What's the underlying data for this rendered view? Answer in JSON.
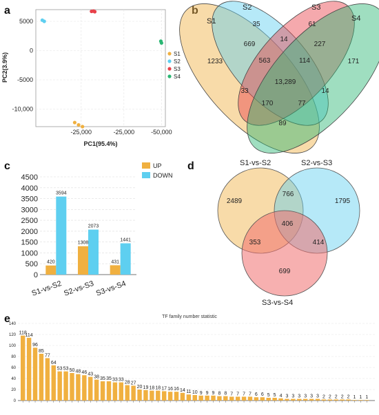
{
  "panels": {
    "a": "a",
    "b": "b",
    "c": "c",
    "d": "d",
    "e": "e"
  },
  "colors": {
    "orange": "#f0b040",
    "blue": "#5ecff0",
    "red": "#e8414a",
    "green": "#2bb673",
    "venn_red": "#f07070",
    "venn_green": "#4cc98a"
  },
  "chart_data": [
    {
      "id": "pca",
      "type": "scatter",
      "xlabel": "PC1(95.4%)",
      "ylabel": "PC2(3.9%)",
      "x_tick_labels": [
        "-25,000",
        "-25,000",
        "-50,000"
      ],
      "y_tick_labels": [
        "5000",
        "0",
        "-5000",
        "-10,000"
      ],
      "ylim": [
        -13000,
        7000
      ],
      "legend_position": "right",
      "series": [
        {
          "name": "S1",
          "color": "#f0b040",
          "points": [
            [
              0.3,
              -12300
            ],
            [
              0.33,
              -12700
            ],
            [
              0.36,
              -13000
            ]
          ]
        },
        {
          "name": "S2",
          "color": "#5ecff0",
          "points": [
            [
              0.05,
              5200
            ],
            [
              0.065,
              5000
            ]
          ]
        },
        {
          "name": "S3",
          "color": "#e8414a",
          "points": [
            [
              0.43,
              6700
            ],
            [
              0.445,
              6750
            ],
            [
              0.455,
              6650
            ]
          ]
        },
        {
          "name": "S4",
          "color": "#2bb673",
          "points": [
            [
              0.965,
              1600
            ],
            [
              0.97,
              1300
            ]
          ]
        }
      ]
    },
    {
      "id": "venn4",
      "type": "venn",
      "sets": [
        "S1",
        "S2",
        "S3",
        "S4"
      ],
      "regions": {
        "S1_only": "1233",
        "S2_only": "35",
        "S3_only": "61",
        "S4_only": "171",
        "S1_S2": "669",
        "S2_S3": "14",
        "S3_S4": "227",
        "S1_S3": "33",
        "S2_S4": "14",
        "S1_S4": "89",
        "S1_S2_S3": "563",
        "S2_S3_S4": "114",
        "S1_S3_S4": "77",
        "S1_S2_S4": "170",
        "all": "13,289"
      }
    },
    {
      "id": "deg_bars",
      "type": "bar",
      "categories": [
        "S1-vs-S2",
        "S2-vs-S3",
        "S3-vs-S4"
      ],
      "series": [
        {
          "name": "UP",
          "color": "#f0b040",
          "values": [
            420,
            1308,
            431
          ]
        },
        {
          "name": "DOWN",
          "color": "#5ecff0",
          "values": [
            3594,
            2073,
            1441
          ]
        }
      ],
      "ylim": [
        0,
        4500
      ],
      "y_ticks": [
        0,
        500,
        1000,
        1500,
        2000,
        2500,
        3000,
        3500,
        4000,
        4500
      ],
      "legend_position": "top-right",
      "grid": true
    },
    {
      "id": "venn3",
      "type": "venn",
      "sets": [
        "S1-vs-S2",
        "S2-vs-S3",
        "S3-vs-S4"
      ],
      "regions": {
        "A_only": "2489",
        "B_only": "1795",
        "C_only": "699",
        "A_B": "766",
        "A_C": "353",
        "B_C": "414",
        "all": "406"
      }
    },
    {
      "id": "tf_family",
      "type": "bar",
      "title": "TF family number statistic",
      "values": [
        118,
        114,
        96,
        85,
        77,
        64,
        53,
        53,
        50,
        48,
        46,
        43,
        38,
        35,
        35,
        33,
        33,
        28,
        27,
        20,
        19,
        18,
        18,
        17,
        16,
        16,
        14,
        11,
        10,
        9,
        9,
        9,
        8,
        8,
        7,
        7,
        7,
        7,
        6,
        6,
        5,
        5,
        4,
        3,
        3,
        3,
        3,
        3,
        3,
        2,
        2,
        2,
        2,
        2,
        1,
        1,
        1
      ],
      "y_ticks": [
        0,
        20,
        40,
        60,
        80,
        100,
        120,
        140
      ],
      "ylim": [
        0,
        140
      ],
      "color": "#f0b040",
      "grid": true
    }
  ]
}
